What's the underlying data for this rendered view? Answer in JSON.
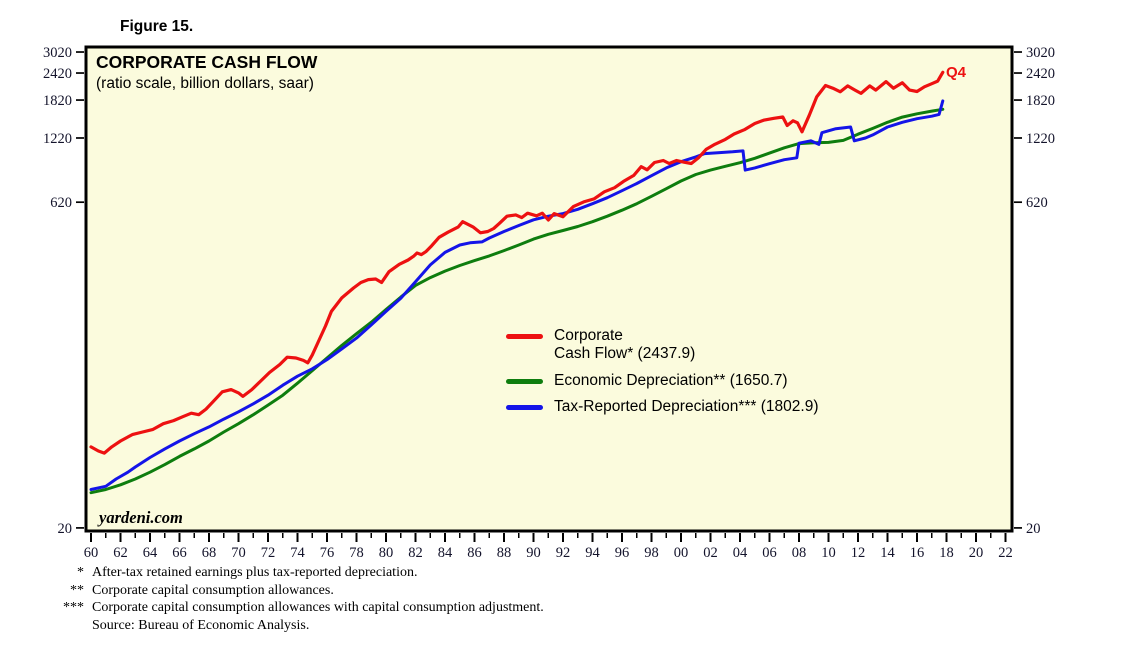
{
  "figure_label": "Figure 15.",
  "chart_data": {
    "type": "line",
    "title": "CORPORATE CASH FLOW",
    "subtitle": "(ratio scale, billion dollars, saar)",
    "watermark": "yardeni.com",
    "end_label": "Q4",
    "plot_bg": "#fbfbdd",
    "frame_color": "#000000",
    "y_scale": "log",
    "ylim": [
      20,
      3020
    ],
    "y_ticks": [
      3020,
      2420,
      1820,
      1220,
      620,
      20
    ],
    "x_tick_years_labeled": [
      "60",
      "62",
      "64",
      "66",
      "68",
      "70",
      "72",
      "74",
      "76",
      "78",
      "80",
      "82",
      "84",
      "86",
      "88",
      "90",
      "92",
      "94",
      "96",
      "98",
      "00",
      "02",
      "04",
      "06",
      "08",
      "10",
      "12",
      "14",
      "16",
      "18",
      "20",
      "22"
    ],
    "x_range_years": [
      1960,
      2022
    ],
    "grid": "off",
    "legend_position": "center-right",
    "series": [
      {
        "name": "Corporate Cash Flow",
        "legend_lines": [
          "Corporate",
          "Cash Flow* (2437.9)"
        ],
        "last_value": 2437.9,
        "last_period": "Q4",
        "color": "#ed1111",
        "points": [
          [
            1960.0,
            47
          ],
          [
            1960.5,
            45
          ],
          [
            1960.9,
            44
          ],
          [
            1961.4,
            47
          ],
          [
            1962.0,
            50
          ],
          [
            1962.8,
            53.5
          ],
          [
            1963.5,
            55
          ],
          [
            1964.2,
            56.5
          ],
          [
            1964.9,
            60
          ],
          [
            1965.6,
            62
          ],
          [
            1966.2,
            64.5
          ],
          [
            1966.8,
            67
          ],
          [
            1967.3,
            66
          ],
          [
            1967.8,
            70
          ],
          [
            1968.3,
            76
          ],
          [
            1968.9,
            84
          ],
          [
            1969.5,
            86
          ],
          [
            1970.0,
            83
          ],
          [
            1970.3,
            80
          ],
          [
            1970.9,
            86
          ],
          [
            1971.5,
            94
          ],
          [
            1972.1,
            103
          ],
          [
            1972.8,
            112
          ],
          [
            1973.3,
            121
          ],
          [
            1973.9,
            120
          ],
          [
            1974.4,
            117
          ],
          [
            1974.7,
            114
          ],
          [
            1975.0,
            124
          ],
          [
            1975.4,
            142
          ],
          [
            1975.9,
            168
          ],
          [
            1976.3,
            196
          ],
          [
            1977.0,
            226
          ],
          [
            1977.8,
            251
          ],
          [
            1978.3,
            266
          ],
          [
            1978.8,
            274
          ],
          [
            1979.3,
            276
          ],
          [
            1979.7,
            266
          ],
          [
            1980.2,
            298
          ],
          [
            1980.9,
            322
          ],
          [
            1981.5,
            337
          ],
          [
            1981.9,
            352
          ],
          [
            1982.1,
            363
          ],
          [
            1982.4,
            357
          ],
          [
            1982.7,
            368
          ],
          [
            1983.1,
            392
          ],
          [
            1983.6,
            428
          ],
          [
            1984.2,
            452
          ],
          [
            1984.9,
            478
          ],
          [
            1985.2,
            505
          ],
          [
            1985.9,
            478
          ],
          [
            1986.4,
            449
          ],
          [
            1986.9,
            455
          ],
          [
            1987.3,
            470
          ],
          [
            1987.7,
            497
          ],
          [
            1988.2,
            535
          ],
          [
            1988.8,
            542
          ],
          [
            1989.2,
            527
          ],
          [
            1989.6,
            552
          ],
          [
            1990.2,
            537
          ],
          [
            1990.6,
            552
          ],
          [
            1991.0,
            514
          ],
          [
            1991.4,
            550
          ],
          [
            1992.0,
            532
          ],
          [
            1992.7,
            592
          ],
          [
            1993.4,
            622
          ],
          [
            1994.1,
            642
          ],
          [
            1994.8,
            692
          ],
          [
            1995.5,
            722
          ],
          [
            1996.1,
            772
          ],
          [
            1996.8,
            822
          ],
          [
            1997.3,
            902
          ],
          [
            1997.7,
            872
          ],
          [
            1998.2,
            942
          ],
          [
            1998.8,
            962
          ],
          [
            1999.2,
            932
          ],
          [
            1999.7,
            962
          ],
          [
            2000.2,
            945
          ],
          [
            2000.7,
            932
          ],
          [
            2001.2,
            992
          ],
          [
            2001.7,
            1082
          ],
          [
            2002.3,
            1142
          ],
          [
            2003.0,
            1202
          ],
          [
            2003.6,
            1272
          ],
          [
            2004.3,
            1332
          ],
          [
            2005.0,
            1422
          ],
          [
            2005.6,
            1472
          ],
          [
            2006.3,
            1502
          ],
          [
            2006.9,
            1522
          ],
          [
            2007.2,
            1392
          ],
          [
            2007.6,
            1462
          ],
          [
            2007.9,
            1432
          ],
          [
            2008.2,
            1302
          ],
          [
            2008.7,
            1552
          ],
          [
            2009.2,
            1882
          ],
          [
            2009.8,
            2122
          ],
          [
            2010.3,
            2062
          ],
          [
            2010.8,
            1985
          ],
          [
            2011.3,
            2112
          ],
          [
            2011.8,
            2022
          ],
          [
            2012.2,
            1952
          ],
          [
            2012.8,
            2112
          ],
          [
            2013.2,
            2022
          ],
          [
            2013.9,
            2212
          ],
          [
            2014.4,
            2062
          ],
          [
            2015.0,
            2182
          ],
          [
            2015.5,
            2022
          ],
          [
            2016.0,
            1992
          ],
          [
            2016.5,
            2092
          ],
          [
            2017.0,
            2162
          ],
          [
            2017.4,
            2222
          ],
          [
            2017.75,
            2437.9
          ]
        ]
      },
      {
        "name": "Economic Depreciation",
        "legend_lines": [
          "Economic Depreciation** (1650.7)"
        ],
        "last_value": 1650.7,
        "color": "#0e7d0e",
        "points": [
          [
            1960,
            29
          ],
          [
            1961,
            30
          ],
          [
            1962,
            31.5
          ],
          [
            1963,
            33.5
          ],
          [
            1964,
            36
          ],
          [
            1965,
            39
          ],
          [
            1966,
            42.5
          ],
          [
            1967,
            46
          ],
          [
            1968,
            50
          ],
          [
            1969,
            55
          ],
          [
            1970,
            60
          ],
          [
            1971,
            66
          ],
          [
            1972,
            73
          ],
          [
            1973,
            81
          ],
          [
            1974,
            92
          ],
          [
            1975,
            105
          ],
          [
            1976,
            120
          ],
          [
            1977,
            137
          ],
          [
            1978,
            155
          ],
          [
            1979,
            175
          ],
          [
            1980,
            200
          ],
          [
            1981,
            228
          ],
          [
            1982,
            258
          ],
          [
            1983,
            280
          ],
          [
            1984,
            300
          ],
          [
            1985,
            318
          ],
          [
            1986,
            335
          ],
          [
            1987,
            352
          ],
          [
            1988,
            372
          ],
          [
            1989,
            395
          ],
          [
            1990,
            420
          ],
          [
            1991,
            442
          ],
          [
            1992,
            460
          ],
          [
            1993,
            480
          ],
          [
            1994,
            505
          ],
          [
            1995,
            535
          ],
          [
            1996,
            570
          ],
          [
            1997,
            610
          ],
          [
            1998,
            660
          ],
          [
            1999,
            715
          ],
          [
            2000,
            775
          ],
          [
            2001,
            830
          ],
          [
            2002,
            870
          ],
          [
            2003,
            905
          ],
          [
            2004,
            940
          ],
          [
            2005,
            985
          ],
          [
            2006,
            1040
          ],
          [
            2007,
            1100
          ],
          [
            2008,
            1150
          ],
          [
            2009,
            1160
          ],
          [
            2010,
            1165
          ],
          [
            2011,
            1190
          ],
          [
            2012,
            1270
          ],
          [
            2013,
            1350
          ],
          [
            2014,
            1440
          ],
          [
            2015,
            1520
          ],
          [
            2016,
            1575
          ],
          [
            2017,
            1620
          ],
          [
            2017.75,
            1650.7
          ]
        ]
      },
      {
        "name": "Tax-Reported Depreciation",
        "legend_lines": [
          "Tax-Reported Depreciation*** (1802.9)"
        ],
        "last_value": 1802.9,
        "color": "#1414e8",
        "points": [
          [
            1960,
            30
          ],
          [
            1961,
            31
          ],
          [
            1961.7,
            33.5
          ],
          [
            1962.5,
            36
          ],
          [
            1963,
            38
          ],
          [
            1964,
            42
          ],
          [
            1965,
            46
          ],
          [
            1966,
            50
          ],
          [
            1967,
            54
          ],
          [
            1968,
            58
          ],
          [
            1969,
            63
          ],
          [
            1970,
            68
          ],
          [
            1971,
            74
          ],
          [
            1972,
            81
          ],
          [
            1973,
            90
          ],
          [
            1974,
            99
          ],
          [
            1975,
            107
          ],
          [
            1976,
            118
          ],
          [
            1977,
            132
          ],
          [
            1978,
            148
          ],
          [
            1979,
            170
          ],
          [
            1980,
            196
          ],
          [
            1981,
            225
          ],
          [
            1982,
            268
          ],
          [
            1983,
            320
          ],
          [
            1984,
            365
          ],
          [
            1985,
            395
          ],
          [
            1985.7,
            404
          ],
          [
            1986.5,
            408
          ],
          [
            1987,
            425
          ],
          [
            1988,
            455
          ],
          [
            1989,
            485
          ],
          [
            1990,
            515
          ],
          [
            1991,
            535
          ],
          [
            1992,
            550
          ],
          [
            1993,
            575
          ],
          [
            1994,
            610
          ],
          [
            1995,
            650
          ],
          [
            1996,
            700
          ],
          [
            1997,
            755
          ],
          [
            1998,
            820
          ],
          [
            1999,
            890
          ],
          [
            2000,
            950
          ],
          [
            2001,
            1000
          ],
          [
            2001.6,
            1035
          ],
          [
            2002.5,
            1045
          ],
          [
            2003.5,
            1055
          ],
          [
            2004.2,
            1065
          ],
          [
            2004.35,
            870
          ],
          [
            2005,
            890
          ],
          [
            2006,
            930
          ],
          [
            2007,
            970
          ],
          [
            2007.85,
            990
          ],
          [
            2008.0,
            1155
          ],
          [
            2008.8,
            1185
          ],
          [
            2009.35,
            1140
          ],
          [
            2009.55,
            1290
          ],
          [
            2010.5,
            1345
          ],
          [
            2011.5,
            1370
          ],
          [
            2011.75,
            1185
          ],
          [
            2012.5,
            1220
          ],
          [
            2013,
            1260
          ],
          [
            2014,
            1370
          ],
          [
            2015,
            1440
          ],
          [
            2016,
            1495
          ],
          [
            2017,
            1535
          ],
          [
            2017.5,
            1565
          ],
          [
            2017.75,
            1802.9
          ]
        ]
      }
    ]
  },
  "footnotes": [
    {
      "marker": "*",
      "text": "After-tax retained earnings plus tax-reported depreciation."
    },
    {
      "marker": "**",
      "text": "Corporate capital consumption allowances."
    },
    {
      "marker": "***",
      "text": "Corporate capital consumption allowances with capital consumption adjustment."
    },
    {
      "marker": "",
      "text": "Source: Bureau of Economic Analysis."
    }
  ]
}
